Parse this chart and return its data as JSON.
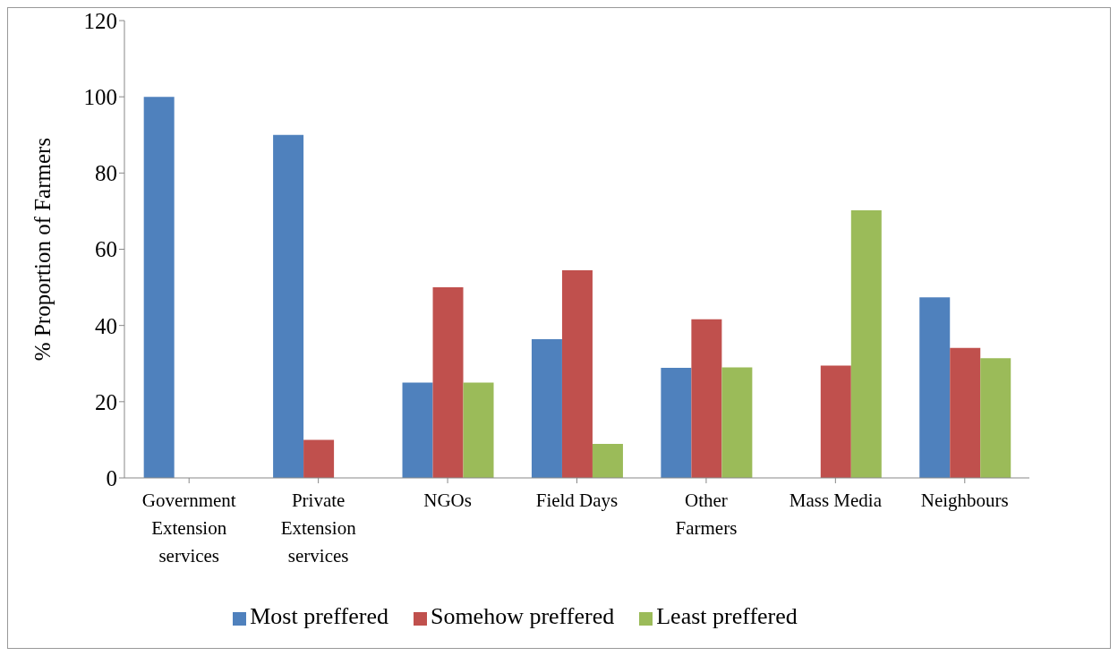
{
  "chart_data": {
    "type": "bar",
    "ylabel": "% Proportion of Farmers",
    "categories": [
      "Government Extension services",
      "Private Extension services",
      "NGOs",
      "Field Days",
      "Other Farmers",
      "Mass Media",
      "Neighbours"
    ],
    "series": [
      {
        "name": "Most preffered",
        "color": "#4f81bd",
        "values": [
          100,
          90,
          25,
          36.4,
          28.9,
          0,
          47.4
        ]
      },
      {
        "name": "Somehow preffered",
        "color": "#c0504d",
        "values": [
          0,
          10,
          50,
          54.5,
          41.6,
          29.5,
          34.1
        ]
      },
      {
        "name": "Least preffered",
        "color": "#9bbb59",
        "values": [
          0,
          0,
          25,
          8.9,
          29,
          70.2,
          31.4
        ]
      }
    ],
    "ylim": [
      0,
      120
    ],
    "yticks": [
      0,
      20,
      40,
      60,
      80,
      100,
      120
    ],
    "grid": false,
    "legend": "bottom"
  }
}
